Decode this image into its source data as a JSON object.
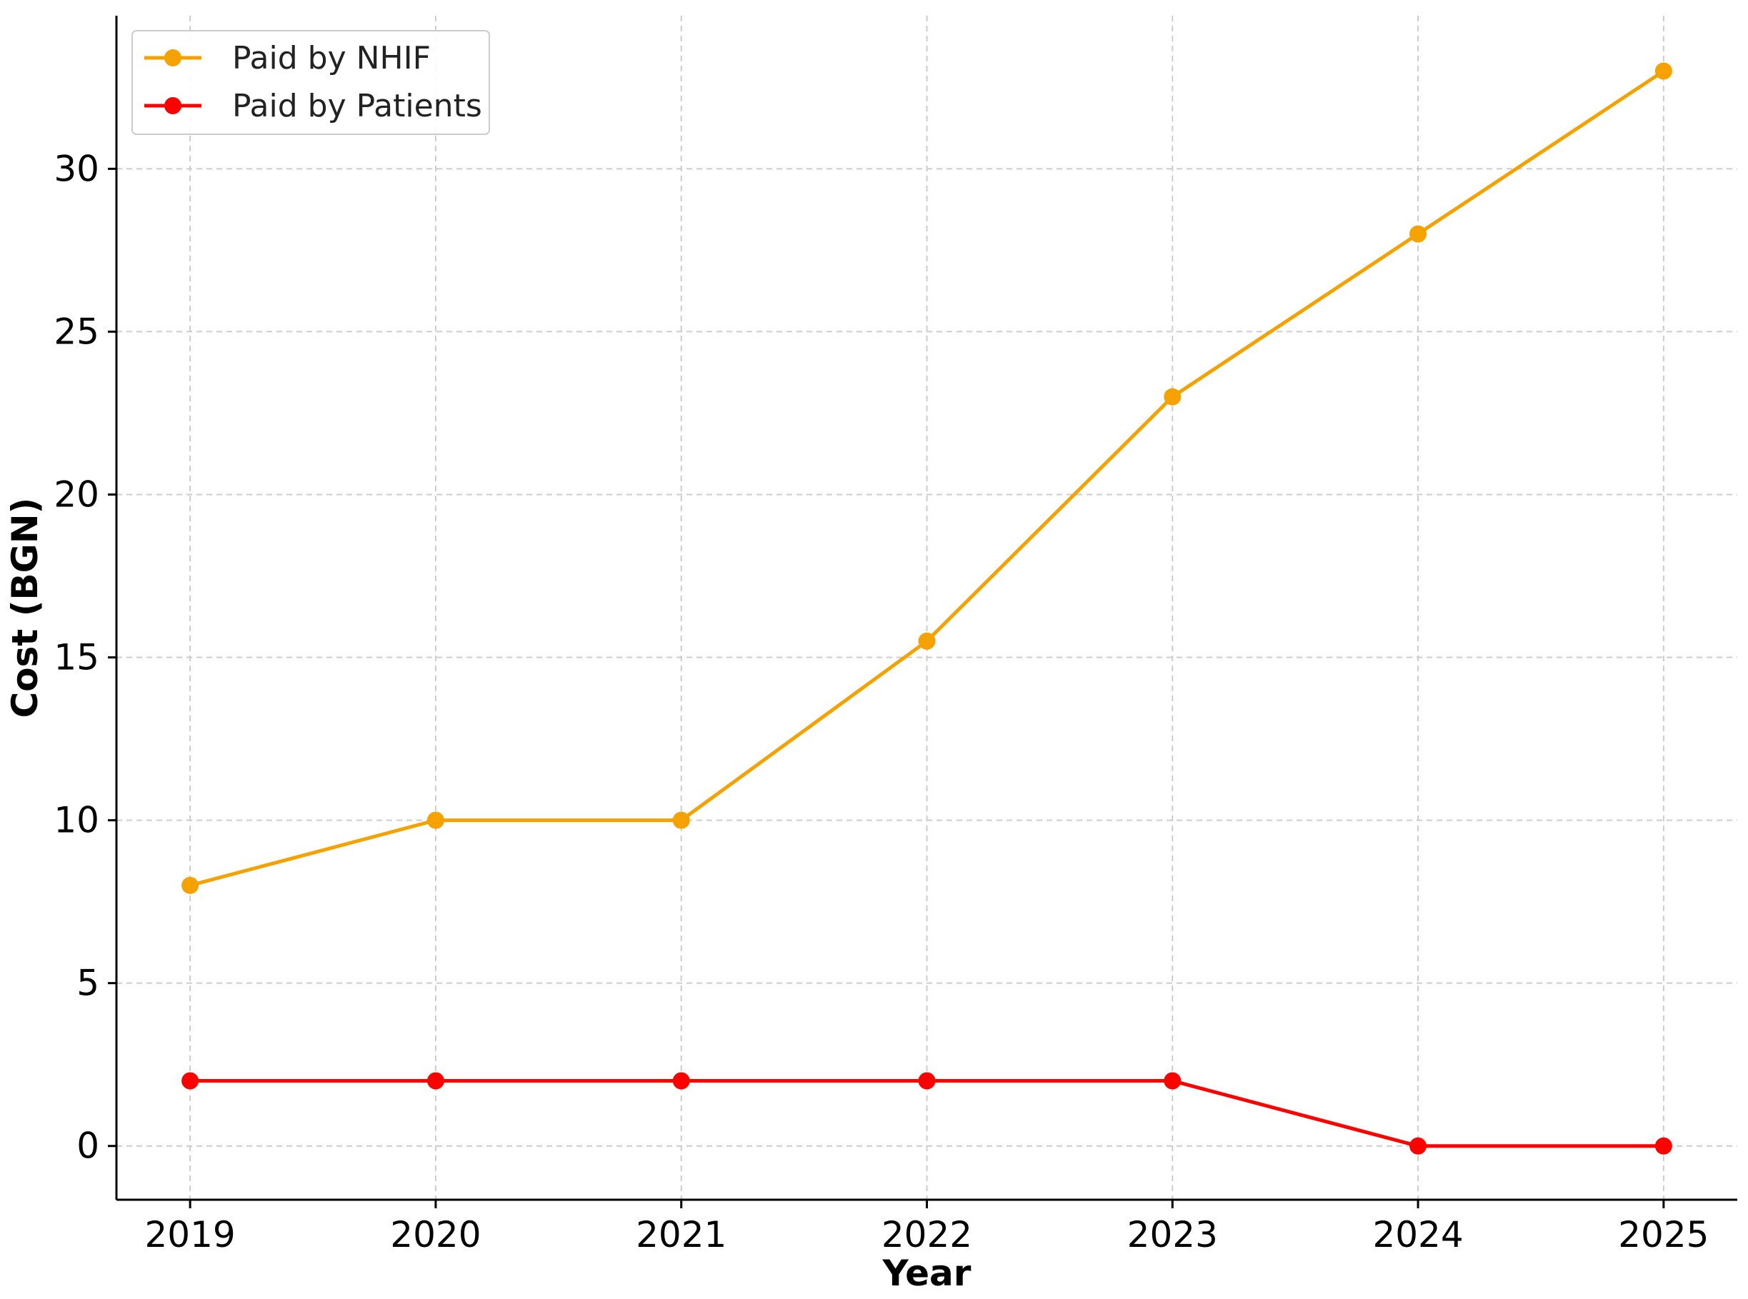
{
  "chart_data": {
    "type": "line",
    "title": "",
    "xlabel": "Year",
    "ylabel": "Cost (BGN)",
    "x": [
      "2019",
      "2020",
      "2021",
      "2022",
      "2023",
      "2024",
      "2025"
    ],
    "series": [
      {
        "name": "Paid by NHIF",
        "color": "#f5a200",
        "values": [
          8,
          10,
          10,
          15.5,
          23,
          28,
          33
        ]
      },
      {
        "name": "Paid by Patients",
        "color": "#ff0000",
        "values": [
          2,
          2,
          2,
          2,
          2,
          0,
          0
        ]
      }
    ],
    "ylim": [
      -1.65,
      34.7
    ],
    "xlim": [
      2018.7,
      2025.3
    ],
    "yticks": [
      "0",
      "5",
      "10",
      "15",
      "20",
      "25",
      "30"
    ],
    "grid": true,
    "legend_position": "top-left",
    "markers": "circle"
  }
}
